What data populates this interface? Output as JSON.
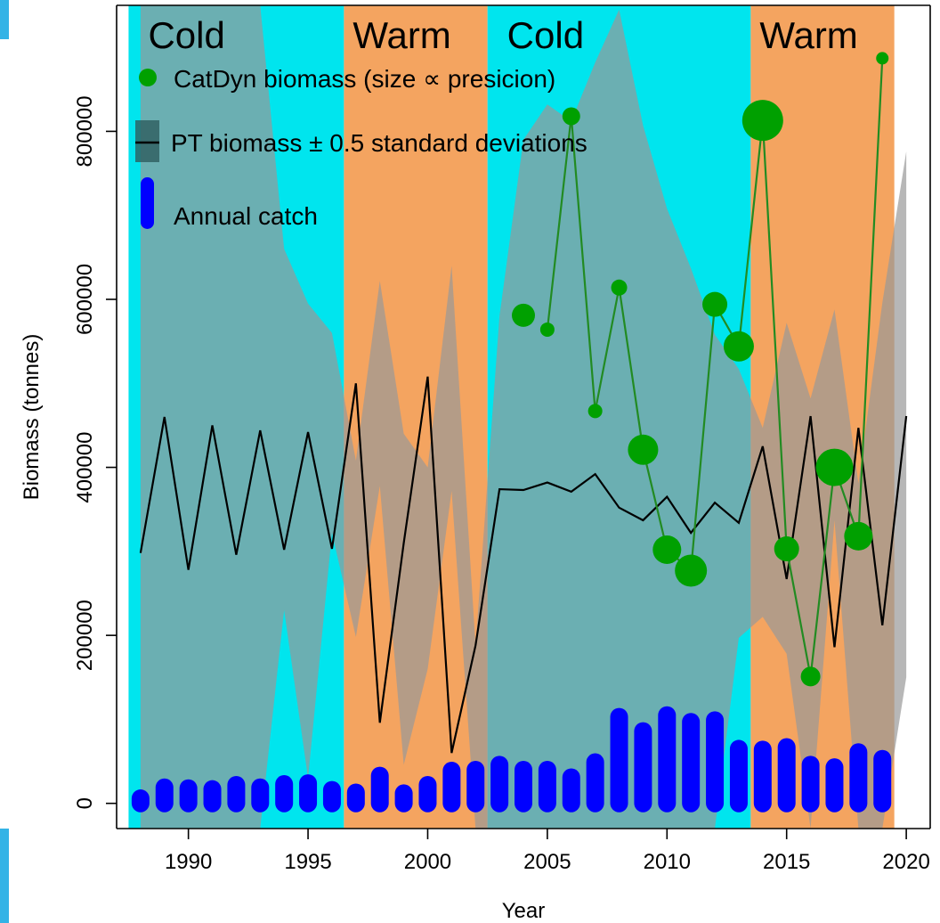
{
  "chart_data": {
    "type": "line",
    "title": "",
    "xlabel": "Year",
    "ylabel": "Biomass (tonnes)",
    "xlim": [
      1987,
      2021
    ],
    "ylim": [
      -30000,
      950000
    ],
    "x_ticks": [
      1990,
      1995,
      2000,
      2005,
      2010,
      2015,
      2020
    ],
    "x_tick_labels": [
      "1990",
      "1995",
      "2000",
      "2005",
      "2010",
      "2015",
      "2020"
    ],
    "y_ticks": [
      0,
      200000,
      400000,
      600000,
      800000
    ],
    "y_tick_labels": [
      "0",
      "200000",
      "400000",
      "600000",
      "800000"
    ],
    "colors": {
      "cold": "#00e5ee",
      "warm": "#f4a460",
      "sd_band": "#999999",
      "sd_band_alpha": 0.7,
      "pt_line": "#000000",
      "catdyn_line": "#228b22",
      "catdyn_point": "#00a000",
      "catch_bar": "#0000ff"
    },
    "regimes": [
      {
        "label": "Cold",
        "type": "cold",
        "start": 1987.5,
        "end": 1996.5
      },
      {
        "label": "Warm",
        "type": "warm",
        "start": 1996.5,
        "end": 2002.5
      },
      {
        "label": "Cold",
        "type": "cold",
        "start": 2002.5,
        "end": 2013.5
      },
      {
        "label": "Warm",
        "type": "warm",
        "start": 2013.5,
        "end": 2019.5
      }
    ],
    "legend": {
      "placement": "top-left",
      "entries": [
        {
          "key": "catdyn",
          "text": "CatDyn  biomass  (size ∝ presicion)"
        },
        {
          "key": "pt",
          "text": "PT  biomass ± 0.5  standard  deviations"
        },
        {
          "key": "catch",
          "text": "Annual catch"
        }
      ]
    },
    "series": [
      {
        "name": "PT  biomass ± 0.5  standard  deviations",
        "type": "line",
        "x": [
          1988,
          1989,
          1990,
          1991,
          1992,
          1993,
          1994,
          1995,
          1996,
          1997,
          1998,
          1999,
          2000,
          2001,
          2002,
          2003,
          2004,
          2005,
          2006,
          2007,
          2008,
          2009,
          2010,
          2011,
          2012,
          2013,
          2014,
          2015,
          2016,
          2017,
          2018,
          2019,
          2020
        ],
        "values": [
          298000,
          460000,
          278000,
          450000,
          296000,
          444000,
          302000,
          442000,
          303000,
          500000,
          96000,
          310000,
          508000,
          60000,
          188000,
          374000,
          373000,
          382000,
          371000,
          392000,
          352000,
          337000,
          365000,
          322000,
          358000,
          334000,
          425000,
          267000,
          461000,
          186000,
          447000,
          212000,
          461000
        ],
        "sd_upper": [
          1200000,
          1200000,
          1200000,
          1200000,
          1200000,
          1200000,
          660000,
          595000,
          560000,
          408000,
          622000,
          440000,
          400000,
          640000,
          188000,
          580000,
          790000,
          832000,
          812000,
          882000,
          945000,
          807000,
          708000,
          637000,
          558000,
          517000,
          447000,
          572000,
          482000,
          588000,
          381000,
          596000,
          776000
        ],
        "sd_lower": [
          -30000,
          -30000,
          -30000,
          -30000,
          -30000,
          -30000,
          230000,
          30000,
          322000,
          198000,
          378000,
          46000,
          160000,
          372000,
          -30000,
          -30000,
          -30000,
          -30000,
          -30000,
          -30000,
          -30000,
          -30000,
          -30000,
          -30000,
          -30000,
          197000,
          222000,
          178000,
          -30000,
          337000,
          -30000,
          -30000,
          150000
        ]
      },
      {
        "name": "CatDyn  biomass  (size ∝ presicion)",
        "type": "scatter-line",
        "segments": [
          {
            "x": [
              2004
            ],
            "values": [
              581000
            ],
            "sizes": [
              13
            ]
          },
          {
            "x": [
              2005,
              2006,
              2007,
              2008,
              2009,
              2010,
              2011,
              2012,
              2013,
              2014,
              2015,
              2016,
              2017,
              2018,
              2019
            ],
            "values": [
              564000,
              818000,
              467000,
              614000,
              421000,
              302000,
              277000,
              594000,
              544000,
              813000,
              303000,
              151000,
              400000,
              318000,
              887000
            ],
            "sizes": [
              8,
              10,
              8,
              9,
              17,
              16,
              18,
              14,
              17,
              23,
              14,
              11,
              21,
              16,
              7
            ]
          }
        ]
      },
      {
        "name": "Annual catch",
        "type": "bar",
        "x": [
          1988,
          1989,
          1990,
          1991,
          1992,
          1993,
          1994,
          1995,
          1996,
          1997,
          1998,
          1999,
          2000,
          2001,
          2002,
          2003,
          2004,
          2005,
          2006,
          2007,
          2008,
          2009,
          2010,
          2011,
          2012,
          2013,
          2014,
          2015,
          2016,
          2017,
          2018,
          2019
        ],
        "values": [
          6000,
          19000,
          18000,
          17000,
          22000,
          19000,
          23000,
          24000,
          16000,
          13000,
          33000,
          12000,
          22000,
          39000,
          40000,
          46000,
          40000,
          40000,
          31000,
          49000,
          103000,
          86000,
          105000,
          97000,
          99000,
          65000,
          64000,
          67000,
          46000,
          43000,
          61000,
          53000
        ]
      }
    ]
  }
}
